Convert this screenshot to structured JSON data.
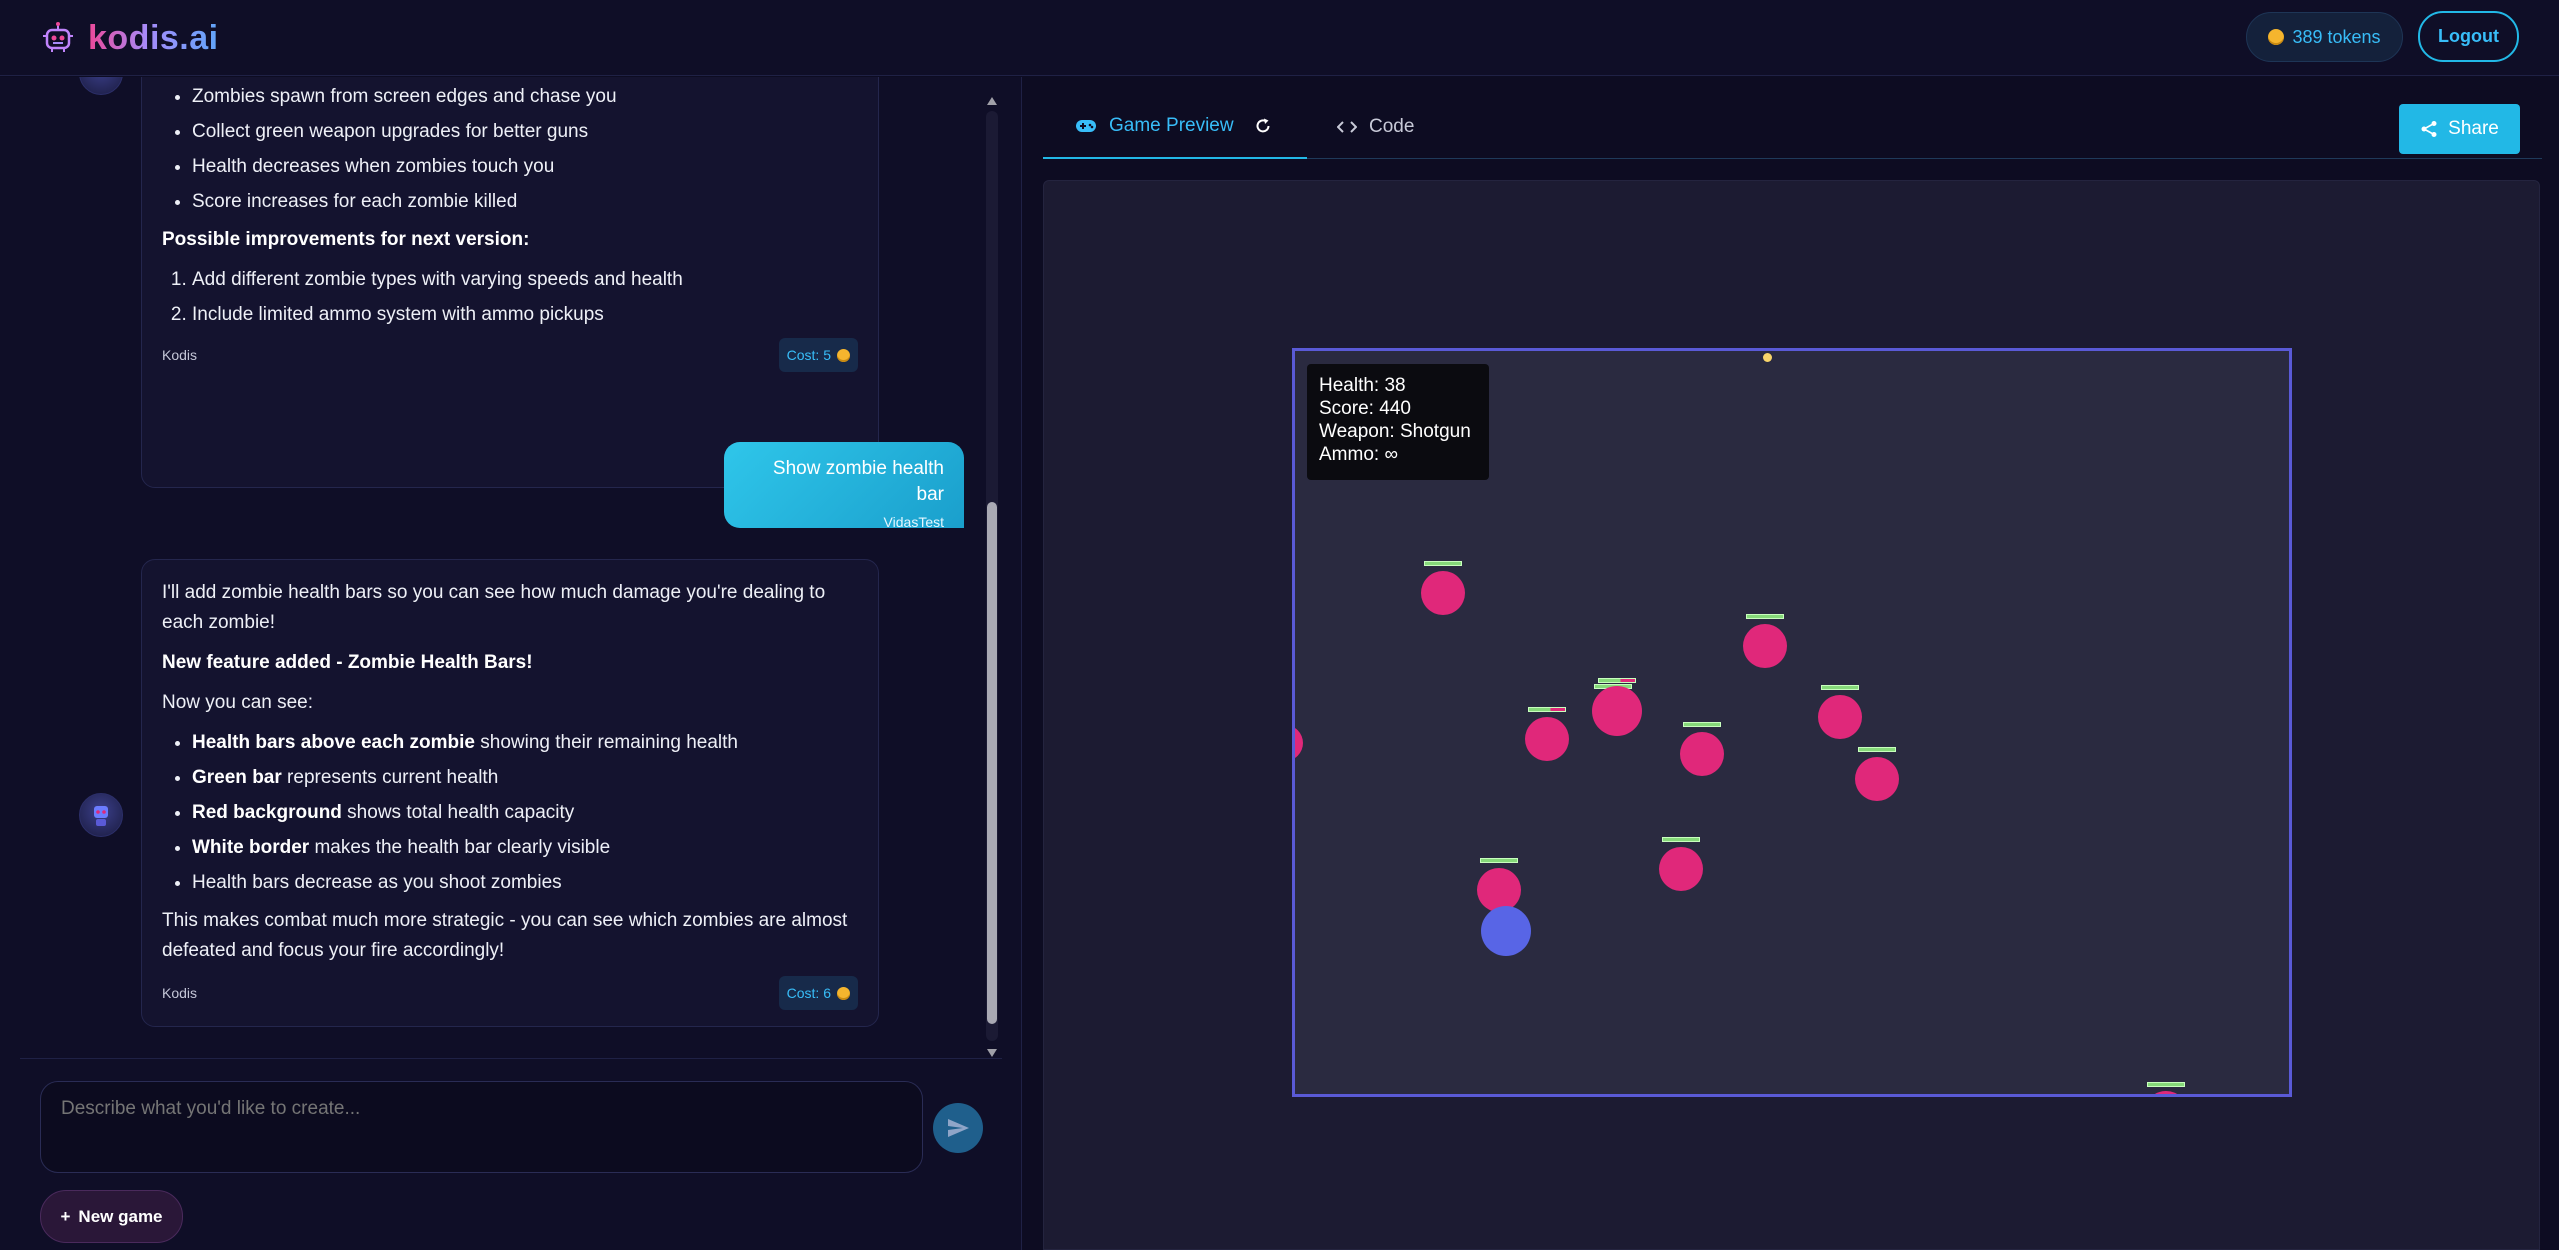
{
  "brand": {
    "name": "kodis.ai"
  },
  "header": {
    "tokens": "389 tokens",
    "logout": "Logout"
  },
  "chat": {
    "msg1": {
      "bullets": [
        "Zombies spawn from screen edges and chase you",
        "Collect green weapon upgrades for better guns",
        "Health decreases when zombies touch you",
        "Score increases for each zombie killed"
      ],
      "improvements_heading": "Possible improvements for next version:",
      "improvements": [
        "Add different zombie types with varying speeds and health",
        "Include limited ammo system with ammo pickups"
      ],
      "author": "Kodis",
      "cost": "Cost: 5"
    },
    "user_msg": {
      "text": "Show zombie health bar",
      "author": "VidasTest"
    },
    "msg2": {
      "intro": "I'll add zombie health bars so you can see how much damage you're dealing to each zombie!",
      "feature_heading": "New feature added - Zombie Health Bars!",
      "now_see": "Now you can see:",
      "items": [
        {
          "bold": "Health bars above each zombie",
          "rest": " showing their remaining health"
        },
        {
          "bold": "Green bar",
          "rest": " represents current health"
        },
        {
          "bold": "Red background",
          "rest": " shows total health capacity"
        },
        {
          "bold": "White border",
          "rest": " makes the health bar clearly visible"
        },
        {
          "bold": "",
          "rest": "Health bars decrease as you shoot zombies"
        }
      ],
      "outro": "This makes combat much more strategic - you can see which zombies are almost defeated and focus your fire accordingly!",
      "author": "Kodis",
      "cost": "Cost: 6"
    }
  },
  "input": {
    "placeholder": "Describe what you'd like to create...",
    "new_game": "New game"
  },
  "tabs": {
    "preview": "Game Preview",
    "code": "Code",
    "share": "Share"
  },
  "game": {
    "hud": {
      "health": "Health: 38",
      "score": "Score: 440",
      "weapon": "Weapon: Shotgun",
      "ammo": "Ammo: ∞"
    }
  },
  "colors": {
    "accent": "#22b8e6",
    "zombie": "#e0287a",
    "player": "#5865e6",
    "health_bar": "#86d97a"
  }
}
